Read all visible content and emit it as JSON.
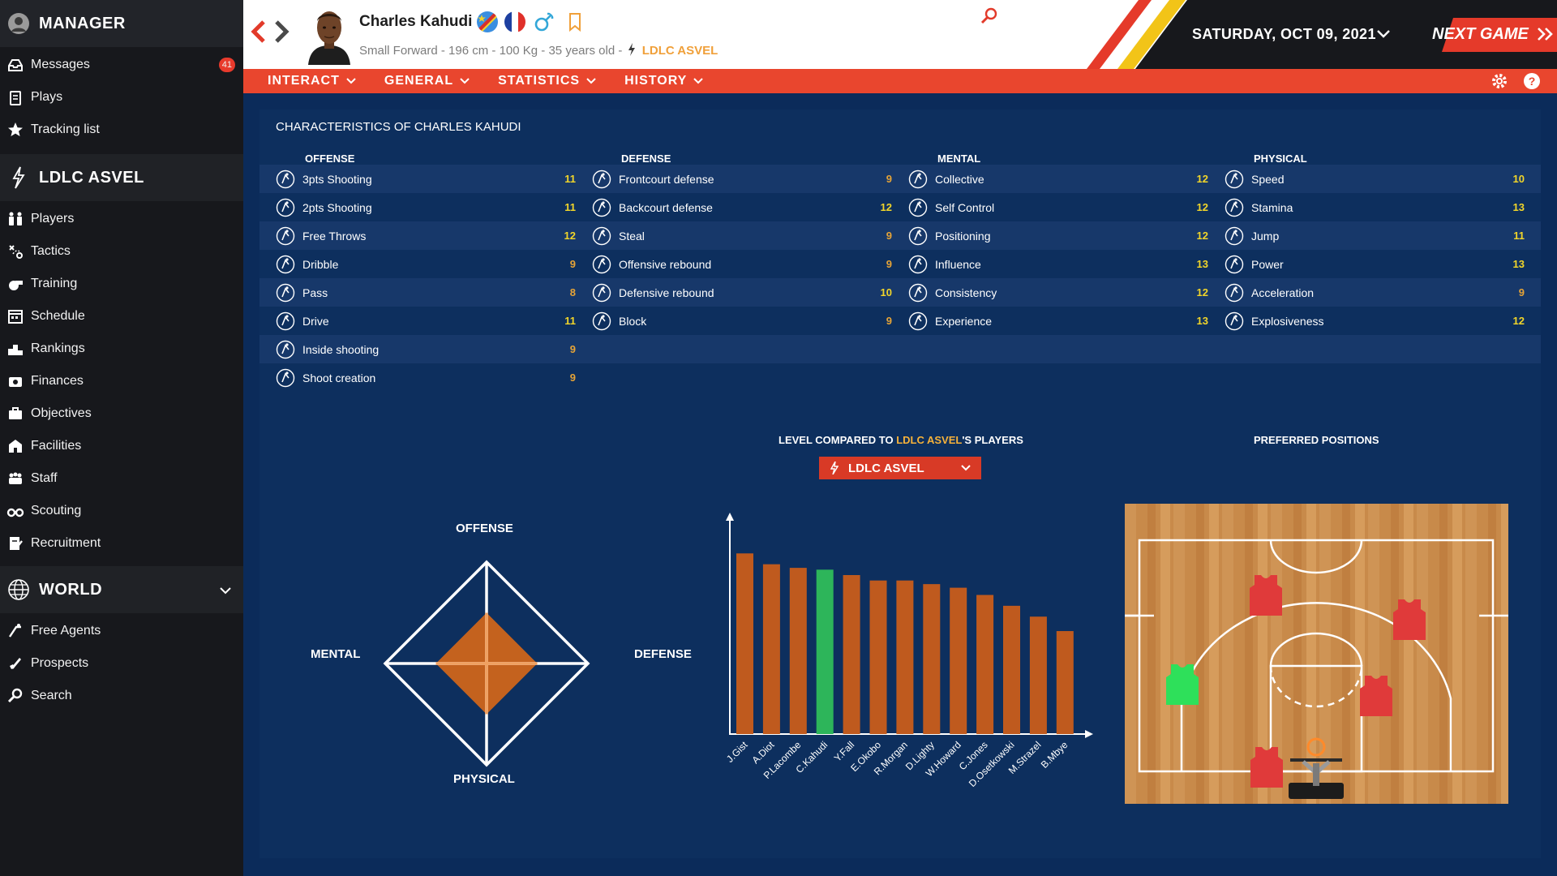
{
  "sidebar": {
    "manager_title": "MANAGER",
    "manager_items": [
      {
        "label": "Messages",
        "icon": "inbox-icon",
        "badge": "41"
      },
      {
        "label": "Plays",
        "icon": "clipboard-icon"
      },
      {
        "label": "Tracking list",
        "icon": "star-icon"
      }
    ],
    "club_title": "LDLC ASVEL",
    "club_items": [
      {
        "label": "Players",
        "icon": "players-icon"
      },
      {
        "label": "Tactics",
        "icon": "tactics-icon"
      },
      {
        "label": "Training",
        "icon": "whistle-icon"
      },
      {
        "label": "Schedule",
        "icon": "calendar-icon"
      },
      {
        "label": "Rankings",
        "icon": "podium-icon"
      },
      {
        "label": "Finances",
        "icon": "money-icon"
      },
      {
        "label": "Objectives",
        "icon": "briefcase-icon"
      },
      {
        "label": "Facilities",
        "icon": "stadium-icon"
      },
      {
        "label": "Staff",
        "icon": "staff-icon"
      },
      {
        "label": "Scouting",
        "icon": "binoculars-icon"
      },
      {
        "label": "Recruitment",
        "icon": "contract-icon"
      }
    ],
    "world_title": "WORLD",
    "world_items": [
      {
        "label": "Free Agents",
        "icon": "free-agent-icon"
      },
      {
        "label": "Prospects",
        "icon": "rocket-icon"
      },
      {
        "label": "Search",
        "icon": "search-icon"
      }
    ]
  },
  "header": {
    "player_name": "Charles Kahudi",
    "position": "Small Forward",
    "height": "196 cm",
    "weight": "100 Kg",
    "age": "35 years old",
    "club": "LDLC ASVEL",
    "separator": " - ",
    "date": "SATURDAY, OCT 09, 2021",
    "next_game": "NEXT GAME"
  },
  "menu": {
    "items": [
      "INTERACT",
      "GENERAL",
      "STATISTICS",
      "HISTORY"
    ]
  },
  "colors": {
    "value_high": "#f1d52a",
    "value_mid": "#e6a437",
    "bar": "#bf5a1e",
    "bar_highlight": "#2db55a",
    "accent": "#e9462e"
  },
  "panel": {
    "title": "CHARACTERISTICS OF CHARLES KAHUDI",
    "columns": [
      {
        "title": "OFFENSE",
        "attrs": [
          {
            "name": "3pts Shooting",
            "value": 11
          },
          {
            "name": "2pts Shooting",
            "value": 11
          },
          {
            "name": "Free Throws",
            "value": 12
          },
          {
            "name": "Dribble",
            "value": 9
          },
          {
            "name": "Pass",
            "value": 8
          },
          {
            "name": "Drive",
            "value": 11
          },
          {
            "name": "Inside shooting",
            "value": 9
          },
          {
            "name": "Shoot creation",
            "value": 9
          }
        ]
      },
      {
        "title": "DEFENSE",
        "attrs": [
          {
            "name": "Frontcourt defense",
            "value": 9
          },
          {
            "name": "Backcourt defense",
            "value": 12
          },
          {
            "name": "Steal",
            "value": 9
          },
          {
            "name": "Offensive rebound",
            "value": 9
          },
          {
            "name": "Defensive rebound",
            "value": 10
          },
          {
            "name": "Block",
            "value": 9
          }
        ]
      },
      {
        "title": "MENTAL",
        "attrs": [
          {
            "name": "Collective",
            "value": 12
          },
          {
            "name": "Self Control",
            "value": 12
          },
          {
            "name": "Positioning",
            "value": 12
          },
          {
            "name": "Influence",
            "value": 13
          },
          {
            "name": "Consistency",
            "value": 12
          },
          {
            "name": "Experience",
            "value": 13
          }
        ]
      },
      {
        "title": "PHYSICAL",
        "attrs": [
          {
            "name": "Speed",
            "value": 10
          },
          {
            "name": "Stamina",
            "value": 13
          },
          {
            "name": "Jump",
            "value": 11
          },
          {
            "name": "Power",
            "value": 13
          },
          {
            "name": "Acceleration",
            "value": 9
          },
          {
            "name": "Explosiveness",
            "value": 12
          }
        ]
      }
    ]
  },
  "radar": {
    "labels": {
      "top": "OFFENSE",
      "right": "DEFENSE",
      "bottom": "PHYSICAL",
      "left": "MENTAL"
    },
    "values": {
      "offense": 0.5,
      "defense": 0.5,
      "physical": 0.5,
      "mental": 0.5
    }
  },
  "comparison": {
    "title_prefix": "LEVEL COMPARED TO ",
    "title_club": "LDLC ASVEL",
    "title_suffix": "'S PLAYERS",
    "selected_club": "LDLC ASVEL"
  },
  "chart_data": {
    "type": "bar",
    "categories": [
      "J.Gist",
      "A.Diot",
      "P.Lacombe",
      "C.Kahudi",
      "Y.Fall",
      "E.Okobo",
      "R.Morgan",
      "D.Lighty",
      "W.Howard",
      "C.Jones",
      "D.Osetkowski",
      "M.Strazel",
      "B.Mbye"
    ],
    "values": [
      100,
      94,
      92,
      91,
      88,
      85,
      85,
      83,
      81,
      77,
      71,
      65,
      57
    ],
    "highlight": "C.Kahudi",
    "ylim": [
      0,
      110
    ],
    "title": "",
    "xlabel": "",
    "ylabel": ""
  },
  "positions": {
    "title": "PREFERRED POSITIONS",
    "players": [
      {
        "pos": "PG",
        "highlight": false
      },
      {
        "pos": "SG",
        "highlight": false
      },
      {
        "pos": "SF",
        "highlight": true
      },
      {
        "pos": "PF",
        "highlight": false
      },
      {
        "pos": "C",
        "highlight": false
      }
    ]
  }
}
